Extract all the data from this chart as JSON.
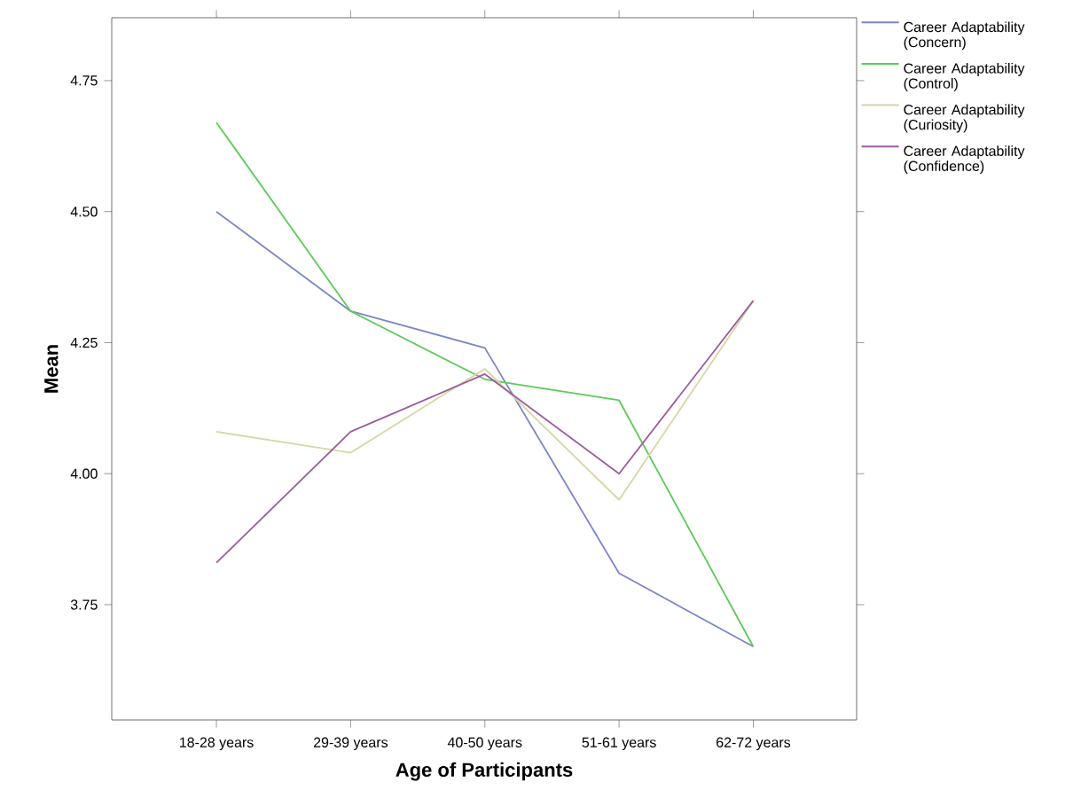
{
  "chart_data": {
    "type": "line",
    "xlabel": "Age of Participants",
    "ylabel": "Mean",
    "categories": [
      "18-28 years",
      "29-39 years",
      "40-50 years",
      "51-61 years",
      "62-72 years"
    ],
    "series": [
      {
        "name": "Career Adaptability (Concern)",
        "color": "#7b86c8",
        "values": [
          4.5,
          4.31,
          4.24,
          3.81,
          3.67
        ]
      },
      {
        "name": "Career Adaptability (Control)",
        "color": "#5dc95a",
        "values": [
          4.67,
          4.31,
          4.18,
          4.14,
          3.67
        ]
      },
      {
        "name": "Career Adaptability (Curiosity)",
        "color": "#d6d6a6",
        "values": [
          4.08,
          4.04,
          4.2,
          3.95,
          4.33
        ]
      },
      {
        "name": "Career Adaptability (Confidence)",
        "color": "#9c5c9c",
        "values": [
          3.83,
          4.08,
          4.19,
          4.0,
          4.33
        ]
      }
    ],
    "ylim": [
      3.53,
      4.87
    ],
    "yticks": [
      {
        "value": 3.75,
        "label": "3.75"
      },
      {
        "value": 4.0,
        "label": "4.00"
      },
      {
        "value": 4.25,
        "label": "4.25"
      },
      {
        "value": 4.5,
        "label": "4.50"
      },
      {
        "value": 4.75,
        "label": "4.75"
      }
    ],
    "legend": "top right",
    "grid": false,
    "marker": "none",
    "line_style": "solid"
  }
}
